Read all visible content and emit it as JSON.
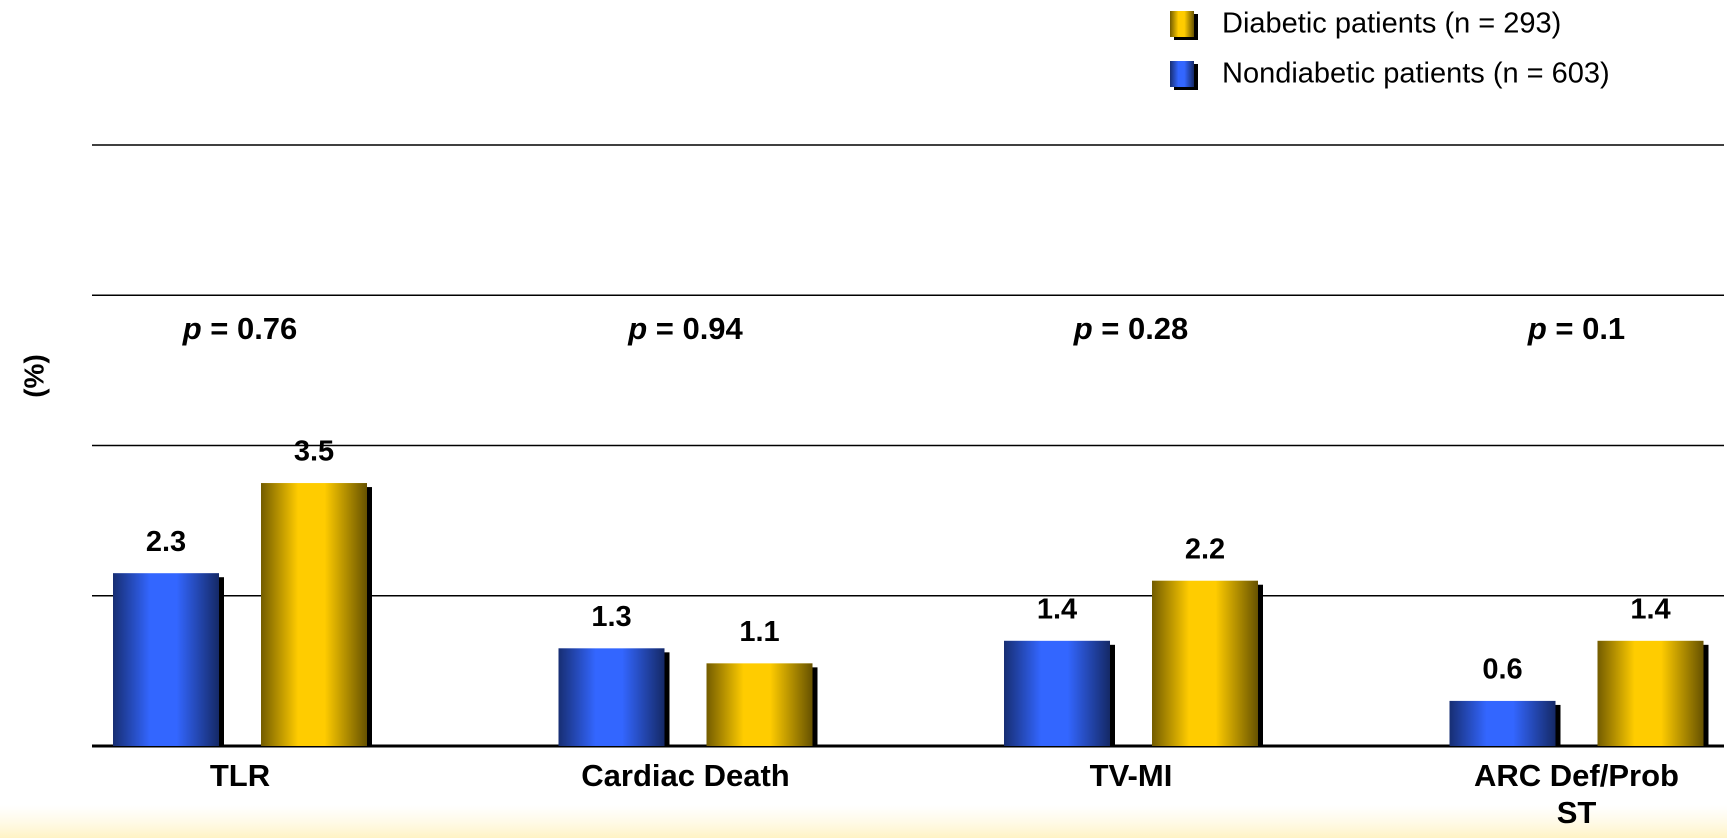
{
  "chart_data": {
    "type": "bar",
    "ylabel": "(%)",
    "categories": [
      "TLR",
      "Cardiac Death",
      "TV-MI",
      "ARC Def/Prob ST"
    ],
    "series": [
      {
        "name": "Nondiabetic patients (n = 603)",
        "color": "#3366ff",
        "values": [
          2.3,
          1.3,
          1.4,
          0.6
        ]
      },
      {
        "name": "Diabetic patients (n = 293)",
        "color": "#ffcc00",
        "values": [
          3.5,
          1.1,
          2.2,
          1.4
        ]
      }
    ],
    "annotations": [
      "p = 0.76",
      "p = 0.94",
      "p = 0.28",
      "p = 0.1"
    ],
    "ylim": [
      0,
      8
    ],
    "yticks": [
      0,
      2,
      4,
      6,
      8
    ],
    "grid": true,
    "legend": "upper right"
  }
}
